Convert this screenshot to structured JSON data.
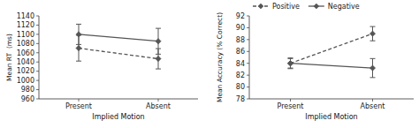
{
  "chart_data": [
    {
      "type": "line",
      "xlabel": "Implied Motion",
      "ylabel": "Mean RT  (ms)",
      "categories": [
        "Present",
        "Absent"
      ],
      "series": [
        {
          "values": [
            1100,
            1085
          ],
          "errors": [
            22,
            28
          ],
          "color": "#555555",
          "marker": "diamond",
          "line_style": "solid"
        },
        {
          "values": [
            1070,
            1047
          ],
          "errors": [
            28,
            22
          ],
          "color": "#555555",
          "marker": "diamond",
          "line_style": "dashed"
        }
      ],
      "ylim": [
        960,
        1140
      ],
      "yticks": [
        960,
        980,
        1000,
        1020,
        1040,
        1060,
        1080,
        1100,
        1120,
        1140
      ],
      "grid": false
    },
    {
      "type": "line",
      "xlabel": "Implied Motion",
      "ylabel": "Mean Accuracy (% Correct)",
      "categories": [
        "Present",
        "Absent"
      ],
      "series": [
        {
          "name": "Positive",
          "values": [
            84.0,
            89.0
          ],
          "errors": [
            0.8,
            1.2
          ],
          "color": "#555555",
          "marker": "diamond",
          "line_style": "dashed"
        },
        {
          "name": "Negative",
          "values": [
            84.0,
            83.2
          ],
          "errors": [
            0.9,
            1.6
          ],
          "color": "#555555",
          "marker": "diamond",
          "line_style": "solid"
        }
      ],
      "ylim": [
        78,
        92
      ],
      "yticks": [
        78,
        80,
        82,
        84,
        86,
        88,
        90,
        92
      ],
      "grid": false,
      "legend": "upper left"
    }
  ]
}
